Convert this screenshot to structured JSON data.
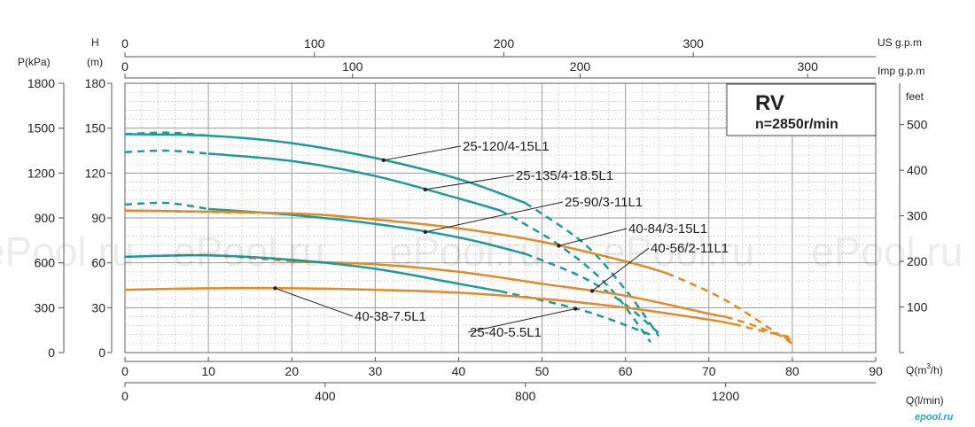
{
  "chart_data": {
    "type": "line",
    "title": "RV",
    "subtitle": "n=2850r/min",
    "x_axis": {
      "label": "Q(m³/h)",
      "range": [
        0,
        90
      ],
      "ticks": [
        0,
        10,
        20,
        30,
        40,
        50,
        60,
        70,
        80,
        90
      ]
    },
    "x_axis_lpm": {
      "label": "Q(l/min)",
      "ticks": [
        0,
        400,
        800,
        1200
      ],
      "factor": 16.6667
    },
    "x_axis_us_gpm": {
      "label": "US g.p.m",
      "ticks": [
        0,
        100,
        200,
        300
      ],
      "factor": 0.2271
    },
    "x_axis_imp_gpm": {
      "label": "Imp g.p.m",
      "ticks": [
        0,
        100,
        200,
        300
      ],
      "factor": 0.2728
    },
    "y_axis": {
      "label": "H (m)",
      "label_top": "H",
      "label_unit": "(m)",
      "range": [
        0,
        180
      ],
      "ticks": [
        0,
        30,
        60,
        90,
        120,
        150,
        180
      ]
    },
    "y_axis_kpa": {
      "label": "P(kPa)",
      "ticks": [
        0,
        300,
        600,
        900,
        1200,
        1500,
        1800
      ],
      "factor": 10
    },
    "y_axis_feet": {
      "label": "feet",
      "ticks": [
        100,
        200,
        300,
        400,
        500
      ],
      "factor": 0.3048
    },
    "grid": true,
    "series": [
      {
        "name": "25-120/4-15L1",
        "color": "#1e9a9a",
        "solid": [
          [
            0,
            146
          ],
          [
            10,
            145
          ],
          [
            20,
            140
          ],
          [
            30,
            130
          ],
          [
            40,
            116
          ],
          [
            48,
            100
          ]
        ],
        "dashed": [
          [
            0,
            146
          ],
          [
            5,
            147
          ],
          [
            10,
            145
          ]
        ],
        "tail": [
          [
            48,
            100
          ],
          [
            55,
            73
          ],
          [
            60,
            42
          ],
          [
            64,
            11
          ]
        ]
      },
      {
        "name": "25-135/4-18.5L1",
        "color": "#1e9a9a",
        "solid": [
          [
            10,
            133
          ],
          [
            20,
            128
          ],
          [
            30,
            118
          ],
          [
            40,
            103
          ],
          [
            45,
            95
          ]
        ],
        "dashed": [
          [
            0,
            134
          ],
          [
            5,
            135
          ],
          [
            10,
            133
          ]
        ],
        "tail": [
          [
            45,
            95
          ],
          [
            52,
            72
          ],
          [
            58,
            44
          ],
          [
            63,
            7
          ]
        ]
      },
      {
        "name": "25-90/3-11L1",
        "color": "#1e9a9a",
        "solid": [
          [
            10,
            96
          ],
          [
            20,
            92
          ],
          [
            30,
            86
          ],
          [
            40,
            77
          ],
          [
            48,
            66
          ]
        ],
        "dashed": [
          [
            0,
            99
          ],
          [
            5,
            100
          ],
          [
            10,
            96
          ]
        ],
        "tail": [
          [
            48,
            66
          ],
          [
            55,
            50
          ],
          [
            60,
            32
          ],
          [
            64,
            13
          ]
        ]
      },
      {
        "name": "40-84/3-15L1",
        "color": "#e08a28",
        "solid": [
          [
            0,
            95
          ],
          [
            20,
            93
          ],
          [
            30,
            89
          ],
          [
            40,
            83
          ],
          [
            50,
            74
          ],
          [
            60,
            61
          ],
          [
            65,
            53
          ]
        ],
        "dashed": [
          [
            0,
            95
          ],
          [
            20,
            93
          ]
        ],
        "tail": [
          [
            65,
            53
          ],
          [
            72,
            35
          ],
          [
            80,
            6
          ]
        ]
      },
      {
        "name": "40-56/2-11L1",
        "color": "#e08a28",
        "solid": [
          [
            20,
            61
          ],
          [
            30,
            59
          ],
          [
            40,
            54
          ],
          [
            50,
            46
          ],
          [
            60,
            38
          ],
          [
            70,
            26
          ],
          [
            72,
            24
          ]
        ],
        "dashed": [
          [
            0,
            64
          ],
          [
            10,
            65
          ],
          [
            20,
            61
          ]
        ],
        "tail": [
          [
            72,
            24
          ],
          [
            76,
            17
          ],
          [
            80,
            8
          ]
        ]
      },
      {
        "name": "25-40-5.5L1",
        "color": "#1e9a9a",
        "solid": [
          [
            0,
            64
          ],
          [
            10,
            65
          ],
          [
            20,
            62
          ],
          [
            30,
            56
          ],
          [
            40,
            46
          ],
          [
            45,
            41
          ]
        ],
        "dashed": [],
        "tail": [
          [
            45,
            41
          ],
          [
            55,
            28
          ],
          [
            63,
            12
          ]
        ]
      },
      {
        "name": "40-38-7.5L1",
        "color": "#e08a28",
        "solid": [
          [
            0,
            42
          ],
          [
            10,
            43
          ],
          [
            20,
            43
          ],
          [
            30,
            42
          ],
          [
            40,
            40
          ],
          [
            50,
            36
          ],
          [
            60,
            30
          ],
          [
            70,
            22
          ],
          [
            73,
            19
          ]
        ],
        "dashed": [],
        "tail": [
          [
            73,
            19
          ],
          [
            76,
            15
          ],
          [
            80,
            10
          ]
        ]
      }
    ],
    "annotations": [
      {
        "text": "25-120/4-15L1",
        "series": 0,
        "at": 31
      },
      {
        "text": "25-135/4-18.5L1",
        "series": 1,
        "at": 36
      },
      {
        "text": "25-90/3-11L1",
        "series": 2,
        "at": 36
      },
      {
        "text": "40-84/3-15L1",
        "series": 3,
        "at": 52
      },
      {
        "text": "40-56/2-11L1",
        "series": 4,
        "at": 56
      },
      {
        "text": "40-38-7.5L1",
        "series": 6,
        "at": 18
      },
      {
        "text": "25-40-5.5L1",
        "series": 5,
        "at": 54
      }
    ],
    "watermarks": [
      "ePool.ru",
      "ePool.ru",
      "ePool.ru",
      "ePool.ru",
      "ePool.ru"
    ],
    "brand": "epool.ru"
  }
}
